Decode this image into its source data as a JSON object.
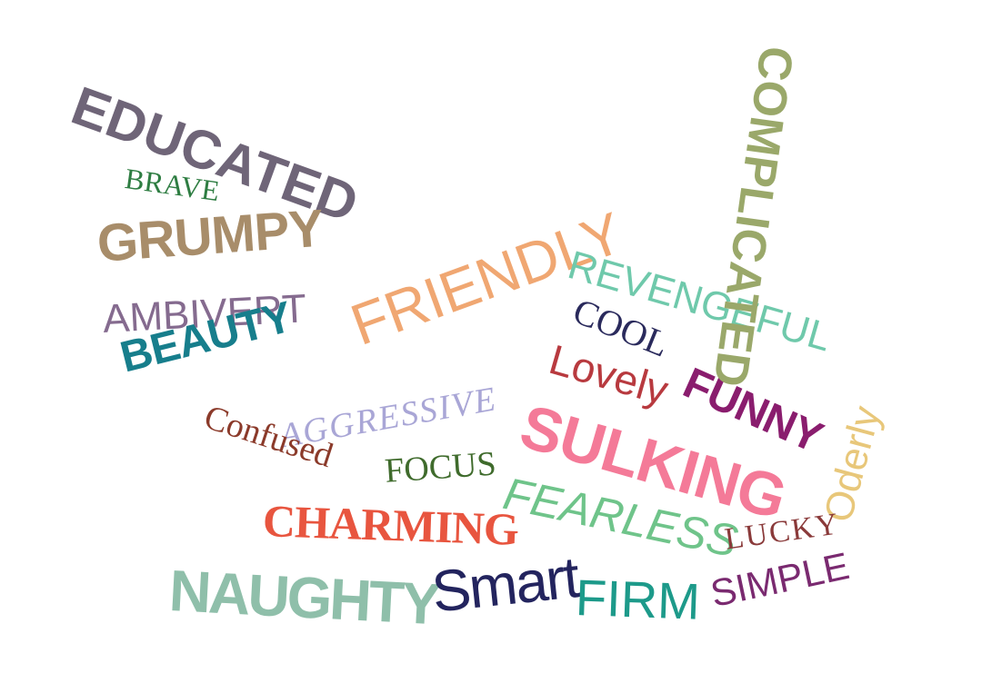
{
  "background": "#ffffff",
  "words": [
    {
      "text": "EDUCATED",
      "color": "#6f6578",
      "name": "word-educated"
    },
    {
      "text": "BRAVE",
      "color": "#2e7d42",
      "name": "word-brave"
    },
    {
      "text": "GRUMPY",
      "color": "#a88d6a",
      "name": "word-grumpy"
    },
    {
      "text": "AMBIVERT",
      "color": "#856b8f",
      "name": "word-ambivert"
    },
    {
      "text": "BEAUTY",
      "color": "#177e8c",
      "name": "word-beauty"
    },
    {
      "text": "FRIENDLY",
      "color": "#f0a772",
      "name": "word-friendly"
    },
    {
      "text": "REVENGEFUL",
      "color": "#6fc9ab",
      "name": "word-revengeful"
    },
    {
      "text": "COOL",
      "color": "#2a2a5c",
      "name": "word-cool"
    },
    {
      "text": "Lovely",
      "color": "#b83a3f",
      "name": "word-lovely"
    },
    {
      "text": "FUNNY",
      "color": "#8a1d6e",
      "name": "word-funny"
    },
    {
      "text": "COMPLICATED",
      "color": "#9aa86a",
      "name": "word-complicated"
    },
    {
      "text": "AGGRESSIVE",
      "color": "#a9a6d6",
      "name": "word-aggressive"
    },
    {
      "text": "Confused",
      "color": "#8b3a2a",
      "name": "word-confused"
    },
    {
      "text": "FOCUS",
      "color": "#3f6b2c",
      "name": "word-focus"
    },
    {
      "text": "SULKING",
      "color": "#f47a98",
      "name": "word-sulking"
    },
    {
      "text": "Oderly",
      "color": "#e8c77a",
      "name": "word-oderly"
    },
    {
      "text": "CHARMING",
      "color": "#e8553f",
      "name": "word-charming"
    },
    {
      "text": "FEARLESS",
      "color": "#6fc48a",
      "name": "word-fearless"
    },
    {
      "text": "LUCKY",
      "color": "#8a3a3a",
      "name": "word-lucky"
    },
    {
      "text": "NAUGHTY",
      "color": "#8fbfaa",
      "name": "word-naughty"
    },
    {
      "text": "Smart",
      "color": "#23245e",
      "name": "word-smart"
    },
    {
      "text": "FIRM",
      "color": "#1d9a8a",
      "name": "word-firm"
    },
    {
      "text": "SIMPLE",
      "color": "#7a2a70",
      "name": "word-simple"
    }
  ]
}
